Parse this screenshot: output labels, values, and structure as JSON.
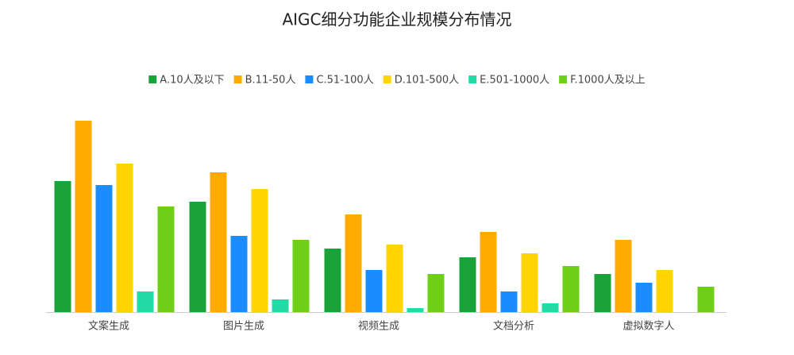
{
  "chart_data": {
    "type": "bar",
    "title": "AIGC细分功能企业规模分布情况",
    "categories": [
      "文案生成",
      "图片生成",
      "视频生成",
      "文档分析",
      "虚拟数字人"
    ],
    "series": [
      {
        "name": "A.10人及以下",
        "color": "#1aa33a",
        "values": [
          165,
          139,
          80,
          69,
          48
        ]
      },
      {
        "name": "B.11-50人",
        "color": "#ffaa00",
        "values": [
          241,
          176,
          123,
          101,
          91
        ]
      },
      {
        "name": "C.51-100人",
        "color": "#1a8cff",
        "values": [
          160,
          96,
          53,
          26,
          37
        ]
      },
      {
        "name": "D.101-500人",
        "color": "#ffd400",
        "values": [
          187,
          155,
          85,
          74,
          53
        ]
      },
      {
        "name": "E.501-1000人",
        "color": "#22dba6",
        "values": [
          26,
          16,
          5,
          11,
          0
        ]
      },
      {
        "name": "F.1000人及以上",
        "color": "#6fcf17",
        "values": [
          133,
          91,
          48,
          58,
          32
        ]
      }
    ],
    "ylim": [
      0,
      250
    ]
  }
}
